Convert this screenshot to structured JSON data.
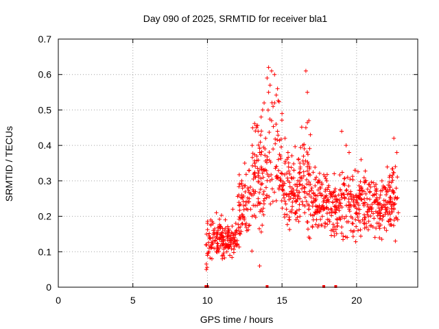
{
  "chart_data": {
    "type": "scatter",
    "title": "Day 090 of 2025, SRMTID for receiver bla1",
    "xlabel": "GPS time / hours",
    "ylabel": "SRMTID / TECUs",
    "xlim": [
      0,
      24.1
    ],
    "ylim": [
      0,
      0.7
    ],
    "x_ticks": [
      0,
      5,
      10,
      15,
      20
    ],
    "y_ticks": [
      0,
      0.1,
      0.2,
      0.3,
      0.4,
      0.5,
      0.6,
      0.7
    ],
    "x_tick_labels": [
      "0",
      "5",
      "10",
      "15",
      "20"
    ],
    "y_tick_labels": [
      "0",
      "0.1",
      "0.2",
      "0.3",
      "0.4",
      "0.5",
      "0.6",
      "0.7"
    ],
    "grid": true,
    "marker": "+",
    "color": "#ff0000",
    "series": [
      {
        "name": "SRMTID",
        "x": [
          9.9,
          10.0,
          10.1,
          10.2,
          10.3,
          10.4,
          10.5,
          10.6,
          10.7,
          10.8,
          10.9,
          11.0,
          11.1,
          11.2,
          11.3,
          11.4,
          11.5,
          11.6,
          11.7,
          11.8,
          11.9,
          12.0,
          12.1,
          12.2,
          12.3,
          12.4,
          12.5,
          12.6,
          12.7,
          12.8,
          12.9,
          13.0,
          13.1,
          13.2,
          13.3,
          13.4,
          13.5,
          13.6,
          13.7,
          13.8,
          13.9,
          14.0,
          14.1,
          14.2,
          14.3,
          14.4,
          14.5,
          14.6,
          14.7,
          14.8,
          14.9,
          15.0,
          15.1,
          15.2,
          15.3,
          15.4,
          15.5,
          15.6,
          15.7,
          15.8,
          15.9,
          16.0,
          16.1,
          16.2,
          16.3,
          16.4,
          16.5,
          16.6,
          16.7,
          16.8,
          16.9,
          17.0,
          17.1,
          17.2,
          17.3,
          17.4,
          17.5,
          17.6,
          17.7,
          17.8,
          17.9,
          18.0,
          18.1,
          18.2,
          18.3,
          18.4,
          18.5,
          18.6,
          18.7,
          18.8,
          18.9,
          19.0,
          19.1,
          19.2,
          19.3,
          19.4,
          19.5,
          19.6,
          19.7,
          19.8,
          19.9,
          20.0,
          20.1,
          20.2,
          20.3,
          20.4,
          20.5,
          20.6,
          20.7,
          20.8,
          20.9,
          21.0,
          21.1,
          21.2,
          21.3,
          21.4,
          21.5,
          21.6,
          21.7,
          21.8,
          21.9,
          22.0,
          22.1,
          22.2,
          22.3,
          22.4,
          22.5,
          22.6,
          22.7,
          22.8,
          10.0,
          10.3,
          10.6,
          11.0,
          11.4,
          11.8,
          12.2,
          12.6,
          13.0,
          13.2,
          13.4,
          13.6,
          13.8,
          14.0,
          14.1,
          14.2,
          14.3,
          14.5,
          14.7,
          15.0,
          15.2,
          15.4,
          15.8,
          16.2,
          16.6,
          16.7,
          16.8,
          17.0,
          17.3,
          17.7,
          18.2,
          18.5,
          19.0,
          19.5,
          19.9,
          20.3,
          20.8,
          21.2,
          21.7,
          22.1,
          22.5,
          22.7,
          13.5,
          14.4,
          14.6,
          16.9,
          19.3,
          22.6
        ],
        "y": [
          0.12,
          0.18,
          0.1,
          0.14,
          0.08,
          0.16,
          0.13,
          0.21,
          0.15,
          0.11,
          0.17,
          0.14,
          0.12,
          0.19,
          0.1,
          0.16,
          0.09,
          0.13,
          0.22,
          0.15,
          0.18,
          0.12,
          0.26,
          0.17,
          0.3,
          0.2,
          0.35,
          0.24,
          0.28,
          0.33,
          0.22,
          0.4,
          0.27,
          0.31,
          0.45,
          0.25,
          0.38,
          0.29,
          0.5,
          0.33,
          0.42,
          0.36,
          0.55,
          0.3,
          0.47,
          0.39,
          0.52,
          0.34,
          0.44,
          0.28,
          0.37,
          0.32,
          0.26,
          0.35,
          0.22,
          0.3,
          0.19,
          0.27,
          0.24,
          0.33,
          0.21,
          0.29,
          0.36,
          0.25,
          0.31,
          0.4,
          0.27,
          0.45,
          0.34,
          0.22,
          0.29,
          0.24,
          0.19,
          0.26,
          0.21,
          0.17,
          0.23,
          0.28,
          0.2,
          0.25,
          0.18,
          0.3,
          0.22,
          0.27,
          0.16,
          0.24,
          0.32,
          0.21,
          0.19,
          0.26,
          0.23,
          0.17,
          0.29,
          0.25,
          0.2,
          0.31,
          0.22,
          0.27,
          0.18,
          0.24,
          0.33,
          0.21,
          0.16,
          0.26,
          0.28,
          0.19,
          0.23,
          0.3,
          0.25,
          0.2,
          0.27,
          0.22,
          0.17,
          0.24,
          0.29,
          0.21,
          0.18,
          0.26,
          0.23,
          0.2,
          0.28,
          0.16,
          0.24,
          0.31,
          0.19,
          0.27,
          0.22,
          0.34,
          0.25,
          0.21,
          0.09,
          0.12,
          0.1,
          0.08,
          0.11,
          0.13,
          0.15,
          0.18,
          0.2,
          0.23,
          0.44,
          0.48,
          0.52,
          0.59,
          0.62,
          0.57,
          0.61,
          0.6,
          0.56,
          0.49,
          0.42,
          0.38,
          0.33,
          0.35,
          0.61,
          0.55,
          0.47,
          0.28,
          0.31,
          0.26,
          0.21,
          0.17,
          0.44,
          0.38,
          0.33,
          0.36,
          0.29,
          0.26,
          0.3,
          0.27,
          0.42,
          0.38,
          0.06,
          0.51,
          0.46,
          0.43,
          0.4,
          0.13
        ],
        "zero_points_x": [
          9.9,
          10.0,
          14.0,
          17.8,
          18.6
        ]
      }
    ]
  }
}
